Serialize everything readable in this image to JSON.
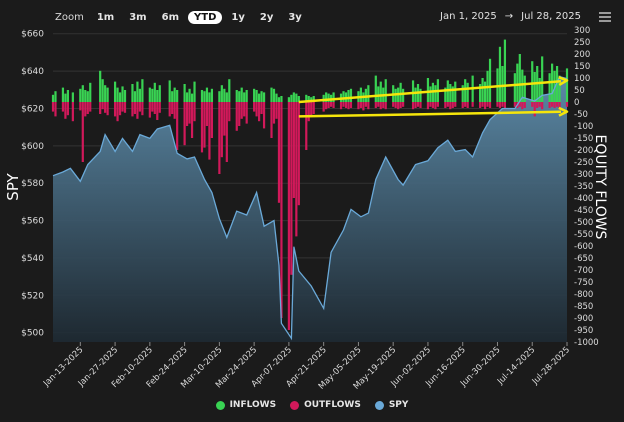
{
  "toolbar": {
    "zoom_label": "Zoom",
    "zoom_options": [
      "1m",
      "3m",
      "6m",
      "YTD",
      "1y",
      "2y",
      "3y"
    ],
    "selected_zoom": "YTD",
    "range_start": "Jan 1, 2025",
    "range_arrow": "→",
    "range_end": "Jul 28, 2025"
  },
  "chart_data": {
    "type": "bar+area",
    "ylabel_left": "SPY",
    "ylabel_right": "EQUITY FLOWS",
    "legend": [
      "INFLOWS",
      "OUTFLOWS",
      "SPY"
    ],
    "colors": {
      "inflows": "#39d353",
      "outflows": "#d1195a",
      "spy_line": "#6aa9d8",
      "annotation": "#f5e50b"
    },
    "y_left_ticks": [
      "$500",
      "$520",
      "$540",
      "$560",
      "$580",
      "$600",
      "$620",
      "$640",
      "$660"
    ],
    "y_left_range": [
      495,
      662
    ],
    "y_right_ticks": [
      300,
      250,
      200,
      150,
      100,
      50,
      0,
      -50,
      -100,
      -150,
      -200,
      -250,
      -300,
      -350,
      -400,
      -450,
      -500,
      -550,
      -600,
      -650,
      -700,
      -750,
      -800,
      -850,
      -900,
      -950,
      -1000
    ],
    "y_right_range": [
      -1000,
      300
    ],
    "x_tick_labels": [
      "Jan-13-2025",
      "Jan-27-2025",
      "Feb-10-2025",
      "Feb-24-2025",
      "Mar-10-2025",
      "Mar-24-2025",
      "Apr-07-2025",
      "Apr-21-2025",
      "May-05-2025",
      "May-19-2025",
      "Jun-02-2025",
      "Jun-16-2025",
      "Jun-30-2025",
      "Jul-14-2025",
      "Jul-28-2025"
    ],
    "x_start": "2025-01-02",
    "x_end": "2025-07-28",
    "grid": true,
    "legend_position": "bottom",
    "spy": [
      [
        "2025-01-02",
        584
      ],
      [
        "2025-01-06",
        586
      ],
      [
        "2025-01-09",
        588
      ],
      [
        "2025-01-13",
        581
      ],
      [
        "2025-01-16",
        590
      ],
      [
        "2025-01-21",
        597
      ],
      [
        "2025-01-23",
        606
      ],
      [
        "2025-01-27",
        597
      ],
      [
        "2025-01-30",
        604
      ],
      [
        "2025-02-03",
        597
      ],
      [
        "2025-02-06",
        606
      ],
      [
        "2025-02-10",
        604
      ],
      [
        "2025-02-13",
        609
      ],
      [
        "2025-02-18",
        611
      ],
      [
        "2025-02-21",
        596
      ],
      [
        "2025-02-25",
        593
      ],
      [
        "2025-02-28",
        594
      ],
      [
        "2025-03-04",
        582
      ],
      [
        "2025-03-07",
        575
      ],
      [
        "2025-03-10",
        561
      ],
      [
        "2025-03-13",
        551
      ],
      [
        "2025-03-17",
        565
      ],
      [
        "2025-03-21",
        563
      ],
      [
        "2025-03-25",
        575
      ],
      [
        "2025-03-28",
        557
      ],
      [
        "2025-04-01",
        560
      ],
      [
        "2025-04-03",
        536
      ],
      [
        "2025-04-04",
        505
      ],
      [
        "2025-04-08",
        497
      ],
      [
        "2025-04-09",
        546
      ],
      [
        "2025-04-11",
        533
      ],
      [
        "2025-04-16",
        525
      ],
      [
        "2025-04-21",
        513
      ],
      [
        "2025-04-24",
        543
      ],
      [
        "2025-04-29",
        555
      ],
      [
        "2025-05-02",
        566
      ],
      [
        "2025-05-06",
        562
      ],
      [
        "2025-05-09",
        564
      ],
      [
        "2025-05-12",
        582
      ],
      [
        "2025-05-16",
        594
      ],
      [
        "2025-05-21",
        582
      ],
      [
        "2025-05-23",
        579
      ],
      [
        "2025-05-28",
        590
      ],
      [
        "2025-06-02",
        592
      ],
      [
        "2025-06-06",
        599
      ],
      [
        "2025-06-10",
        603
      ],
      [
        "2025-06-13",
        597
      ],
      [
        "2025-06-17",
        598
      ],
      [
        "2025-06-20",
        594
      ],
      [
        "2025-06-24",
        607
      ],
      [
        "2025-06-27",
        614
      ],
      [
        "2025-07-02",
        620
      ],
      [
        "2025-07-07",
        620
      ],
      [
        "2025-07-10",
        626
      ],
      [
        "2025-07-15",
        624
      ],
      [
        "2025-07-18",
        627
      ],
      [
        "2025-07-22",
        628
      ],
      [
        "2025-07-25",
        637
      ],
      [
        "2025-07-28",
        636
      ]
    ],
    "flows": [
      {
        "x": "2025-01-02",
        "in": 30,
        "out": -40
      },
      {
        "x": "2025-01-03",
        "in": 45,
        "out": -60
      },
      {
        "x": "2025-01-06",
        "in": 60,
        "out": -40
      },
      {
        "x": "2025-01-07",
        "in": 35,
        "out": -70
      },
      {
        "x": "2025-01-08",
        "in": 50,
        "out": -55
      },
      {
        "x": "2025-01-10",
        "in": 40,
        "out": -80
      },
      {
        "x": "2025-01-13",
        "in": 55,
        "out": -35
      },
      {
        "x": "2025-01-14",
        "in": 70,
        "out": -250
      },
      {
        "x": "2025-01-15",
        "in": 50,
        "out": -60
      },
      {
        "x": "2025-01-16",
        "in": 45,
        "out": -50
      },
      {
        "x": "2025-01-17",
        "in": 80,
        "out": -40
      },
      {
        "x": "2025-01-21",
        "in": 130,
        "out": -50
      },
      {
        "x": "2025-01-22",
        "in": 95,
        "out": -30
      },
      {
        "x": "2025-01-23",
        "in": 70,
        "out": -45
      },
      {
        "x": "2025-01-24",
        "in": 60,
        "out": -55
      },
      {
        "x": "2025-01-27",
        "in": 85,
        "out": -60
      },
      {
        "x": "2025-01-28",
        "in": 60,
        "out": -80
      },
      {
        "x": "2025-01-29",
        "in": 40,
        "out": -55
      },
      {
        "x": "2025-01-30",
        "in": 65,
        "out": -40
      },
      {
        "x": "2025-01-31",
        "in": 50,
        "out": -45
      },
      {
        "x": "2025-02-03",
        "in": 75,
        "out": -60
      },
      {
        "x": "2025-02-04",
        "in": 45,
        "out": -50
      },
      {
        "x": "2025-02-05",
        "in": 85,
        "out": -70
      },
      {
        "x": "2025-02-06",
        "in": 55,
        "out": -40
      },
      {
        "x": "2025-02-07",
        "in": 95,
        "out": -55
      },
      {
        "x": "2025-02-10",
        "in": 60,
        "out": -65
      },
      {
        "x": "2025-02-11",
        "in": 55,
        "out": -40
      },
      {
        "x": "2025-02-12",
        "in": 80,
        "out": -50
      },
      {
        "x": "2025-02-13",
        "in": 50,
        "out": -75
      },
      {
        "x": "2025-02-14",
        "in": 70,
        "out": -45
      },
      {
        "x": "2025-02-18",
        "in": 90,
        "out": -60
      },
      {
        "x": "2025-02-19",
        "in": 45,
        "out": -50
      },
      {
        "x": "2025-02-20",
        "in": 60,
        "out": -70
      },
      {
        "x": "2025-02-21",
        "in": 50,
        "out": -200
      },
      {
        "x": "2025-02-24",
        "in": 75,
        "out": -180
      },
      {
        "x": "2025-02-25",
        "in": 40,
        "out": -100
      },
      {
        "x": "2025-02-26",
        "in": 55,
        "out": -90
      },
      {
        "x": "2025-02-27",
        "in": 35,
        "out": -150
      },
      {
        "x": "2025-02-28",
        "in": 85,
        "out": -80
      },
      {
        "x": "2025-03-03",
        "in": 50,
        "out": -210
      },
      {
        "x": "2025-03-04",
        "in": 45,
        "out": -190
      },
      {
        "x": "2025-03-05",
        "in": 60,
        "out": -100
      },
      {
        "x": "2025-03-06",
        "in": 40,
        "out": -240
      },
      {
        "x": "2025-03-07",
        "in": 55,
        "out": -150
      },
      {
        "x": "2025-03-10",
        "in": 45,
        "out": -300
      },
      {
        "x": "2025-03-11",
        "in": 70,
        "out": -230
      },
      {
        "x": "2025-03-12",
        "in": 55,
        "out": -140
      },
      {
        "x": "2025-03-13",
        "in": 40,
        "out": -250
      },
      {
        "x": "2025-03-14",
        "in": 95,
        "out": -80
      },
      {
        "x": "2025-03-17",
        "in": 50,
        "out": -120
      },
      {
        "x": "2025-03-18",
        "in": 45,
        "out": -100
      },
      {
        "x": "2025-03-19",
        "in": 60,
        "out": -70
      },
      {
        "x": "2025-03-20",
        "in": 40,
        "out": -60
      },
      {
        "x": "2025-03-21",
        "in": 50,
        "out": -90
      },
      {
        "x": "2025-03-24",
        "in": 55,
        "out": -40
      },
      {
        "x": "2025-03-25",
        "in": 50,
        "out": -60
      },
      {
        "x": "2025-03-26",
        "in": 35,
        "out": -80
      },
      {
        "x": "2025-03-27",
        "in": 45,
        "out": -50
      },
      {
        "x": "2025-03-28",
        "in": 40,
        "out": -110
      },
      {
        "x": "2025-03-31",
        "in": 60,
        "out": -150
      },
      {
        "x": "2025-04-01",
        "in": 55,
        "out": -90
      },
      {
        "x": "2025-04-02",
        "in": 35,
        "out": -70
      },
      {
        "x": "2025-04-03",
        "in": 20,
        "out": -420
      },
      {
        "x": "2025-04-04",
        "in": 25,
        "out": -900
      },
      {
        "x": "2025-04-07",
        "in": 20,
        "out": -950
      },
      {
        "x": "2025-04-08",
        "in": 30,
        "out": -720
      },
      {
        "x": "2025-04-09",
        "in": 40,
        "out": -400
      },
      {
        "x": "2025-04-10",
        "in": 35,
        "out": -560
      },
      {
        "x": "2025-04-11",
        "in": 25,
        "out": -430
      },
      {
        "x": "2025-04-14",
        "in": 30,
        "out": -200
      },
      {
        "x": "2025-04-15",
        "in": 25,
        "out": -80
      },
      {
        "x": "2025-04-16",
        "in": 20,
        "out": -60
      },
      {
        "x": "2025-04-17",
        "in": 25,
        "out": -50
      },
      {
        "x": "2025-04-21",
        "in": 30,
        "out": -40
      },
      {
        "x": "2025-04-22",
        "in": 40,
        "out": -30
      },
      {
        "x": "2025-04-23",
        "in": 35,
        "out": -25
      },
      {
        "x": "2025-04-24",
        "in": 30,
        "out": -20
      },
      {
        "x": "2025-04-25",
        "in": 40,
        "out": -25
      },
      {
        "x": "2025-04-28",
        "in": 35,
        "out": -30
      },
      {
        "x": "2025-04-29",
        "in": 45,
        "out": -20
      },
      {
        "x": "2025-04-30",
        "in": 40,
        "out": -25
      },
      {
        "x": "2025-05-01",
        "in": 50,
        "out": -30
      },
      {
        "x": "2025-05-02",
        "in": 55,
        "out": -25
      },
      {
        "x": "2025-05-05",
        "in": 45,
        "out": -30
      },
      {
        "x": "2025-05-06",
        "in": 60,
        "out": -25
      },
      {
        "x": "2025-05-07",
        "in": 40,
        "out": -35
      },
      {
        "x": "2025-05-08",
        "in": 55,
        "out": -20
      },
      {
        "x": "2025-05-09",
        "in": 70,
        "out": -30
      },
      {
        "x": "2025-05-12",
        "in": 110,
        "out": -25
      },
      {
        "x": "2025-05-13",
        "in": 65,
        "out": -20
      },
      {
        "x": "2025-05-14",
        "in": 85,
        "out": -30
      },
      {
        "x": "2025-05-15",
        "in": 60,
        "out": -25
      },
      {
        "x": "2025-05-16",
        "in": 95,
        "out": -30
      },
      {
        "x": "2025-05-19",
        "in": 70,
        "out": -20
      },
      {
        "x": "2025-05-20",
        "in": 55,
        "out": -25
      },
      {
        "x": "2025-05-21",
        "in": 60,
        "out": -30
      },
      {
        "x": "2025-05-22",
        "in": 80,
        "out": -25
      },
      {
        "x": "2025-05-23",
        "in": 55,
        "out": -20
      },
      {
        "x": "2025-05-27",
        "in": 90,
        "out": -30
      },
      {
        "x": "2025-05-28",
        "in": 60,
        "out": -25
      },
      {
        "x": "2025-05-29",
        "in": 75,
        "out": -20
      },
      {
        "x": "2025-05-30",
        "in": 55,
        "out": -25
      },
      {
        "x": "2025-06-02",
        "in": 100,
        "out": -30
      },
      {
        "x": "2025-06-03",
        "in": 65,
        "out": -20
      },
      {
        "x": "2025-06-04",
        "in": 80,
        "out": -25
      },
      {
        "x": "2025-06-05",
        "in": 70,
        "out": -30
      },
      {
        "x": "2025-06-06",
        "in": 95,
        "out": -20
      },
      {
        "x": "2025-06-09",
        "in": 60,
        "out": -25
      },
      {
        "x": "2025-06-10",
        "in": 90,
        "out": -20
      },
      {
        "x": "2025-06-11",
        "in": 75,
        "out": -30
      },
      {
        "x": "2025-06-12",
        "in": 65,
        "out": -25
      },
      {
        "x": "2025-06-13",
        "in": 85,
        "out": -20
      },
      {
        "x": "2025-06-16",
        "in": 70,
        "out": -25
      },
      {
        "x": "2025-06-17",
        "in": 95,
        "out": -20
      },
      {
        "x": "2025-06-18",
        "in": 80,
        "out": -25
      },
      {
        "x": "2025-06-20",
        "in": 110,
        "out": -20
      },
      {
        "x": "2025-06-23",
        "in": 75,
        "out": -25
      },
      {
        "x": "2025-06-24",
        "in": 100,
        "out": -20
      },
      {
        "x": "2025-06-25",
        "in": 85,
        "out": -30
      },
      {
        "x": "2025-06-26",
        "in": 130,
        "out": -20
      },
      {
        "x": "2025-06-27",
        "in": 180,
        "out": -25
      },
      {
        "x": "2025-06-30",
        "in": 140,
        "out": -20
      },
      {
        "x": "2025-07-01",
        "in": 230,
        "out": -25
      },
      {
        "x": "2025-07-02",
        "in": 150,
        "out": -20
      },
      {
        "x": "2025-07-03",
        "in": 260,
        "out": -30
      },
      {
        "x": "2025-07-07",
        "in": 120,
        "out": -20
      },
      {
        "x": "2025-07-08",
        "in": 160,
        "out": -25
      },
      {
        "x": "2025-07-09",
        "in": 200,
        "out": -20
      },
      {
        "x": "2025-07-10",
        "in": 135,
        "out": -30
      },
      {
        "x": "2025-07-11",
        "in": 110,
        "out": -25
      },
      {
        "x": "2025-07-14",
        "in": 170,
        "out": -20
      },
      {
        "x": "2025-07-15",
        "in": 125,
        "out": -60
      },
      {
        "x": "2025-07-16",
        "in": 150,
        "out": -25
      },
      {
        "x": "2025-07-17",
        "in": 100,
        "out": -20
      },
      {
        "x": "2025-07-18",
        "in": 190,
        "out": -30
      },
      {
        "x": "2025-07-21",
        "in": 120,
        "out": -25
      },
      {
        "x": "2025-07-22",
        "in": 160,
        "out": -20
      },
      {
        "x": "2025-07-23",
        "in": 130,
        "out": -25
      },
      {
        "x": "2025-07-24",
        "in": 150,
        "out": -20
      },
      {
        "x": "2025-07-25",
        "in": 110,
        "out": -25
      },
      {
        "x": "2025-07-28",
        "in": 140,
        "out": -20
      }
    ],
    "annotations": [
      {
        "type": "arrow",
        "from": [
          "2025-04-11",
          0
        ],
        "to": [
          "2025-07-28",
          90
        ]
      },
      {
        "type": "arrow",
        "from": [
          "2025-04-11",
          -60
        ],
        "to": [
          "2025-07-28",
          -40
        ]
      }
    ]
  }
}
